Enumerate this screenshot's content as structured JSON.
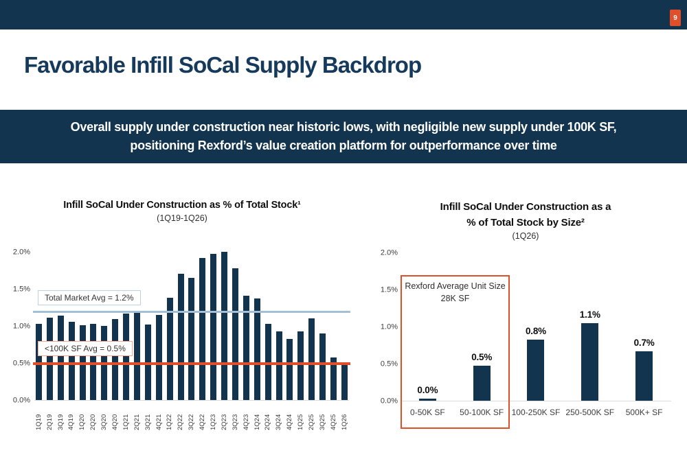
{
  "page_badge": "9",
  "title": "Favorable Infill SoCal Supply Backdrop",
  "banner": {
    "line1": "Overall supply under construction near historic lows, with negligible new supply under 100K SF,",
    "line2": "positioning Rexford’s value creation platform for outperformance over time"
  },
  "colors": {
    "navy": "#12344E",
    "orange": "#E04E2A",
    "avg_line_blue": "#A3C0D6",
    "avg_line_orange": "#E04E2A"
  },
  "chart_data": [
    {
      "type": "bar",
      "title": "Infill SoCal Under Construction as % of Total Stock¹",
      "subtitle": "(1Q19-1Q26)",
      "ylim": [
        0,
        2.0
      ],
      "yticks": [
        "0.0%",
        "0.5%",
        "1.0%",
        "1.5%",
        "2.0%"
      ],
      "grid": false,
      "categories": [
        "1Q19",
        "2Q19",
        "3Q19",
        "4Q19",
        "1Q20",
        "2Q20",
        "3Q20",
        "4Q20",
        "1Q21",
        "2Q21",
        "3Q21",
        "4Q21",
        "1Q22",
        "2Q22",
        "3Q22",
        "4Q22",
        "1Q23",
        "2Q23",
        "3Q23",
        "4Q23",
        "1Q24",
        "2Q24",
        "3Q24",
        "4Q24",
        "1Q25",
        "2Q25",
        "3Q25",
        "4Q25",
        "1Q26"
      ],
      "values": [
        1.03,
        1.11,
        1.14,
        1.06,
        1.01,
        1.03,
        1.0,
        1.09,
        1.17,
        1.18,
        1.02,
        1.15,
        1.38,
        1.7,
        1.65,
        1.92,
        1.97,
        2.0,
        1.78,
        1.41,
        1.37,
        1.03,
        0.93,
        0.82,
        0.93,
        1.1,
        0.9,
        0.57,
        0.5
      ],
      "reference_lines": [
        {
          "label": "Total Market Avg = 1.2%",
          "value": 1.2,
          "color": "#A3C0D6"
        },
        {
          "label": "<100K SF Avg = 0.5%",
          "value": 0.5,
          "color": "#E04E2A"
        }
      ]
    },
    {
      "type": "bar",
      "title": "Infill SoCal Under Construction as a % of Total Stock by Size²",
      "title_lines": [
        "Infill SoCal Under Construction as a",
        "% of Total Stock by Size²"
      ],
      "subtitle": "(1Q26)",
      "ylim": [
        0,
        2.0
      ],
      "yticks": [
        "0.0%",
        "0.5%",
        "1.0%",
        "1.5%",
        "2.0%"
      ],
      "grid": false,
      "categories": [
        "0-50K SF",
        "50-100K SF",
        "100-250K SF",
        "250-500K SF",
        "500K+ SF"
      ],
      "values": [
        0.03,
        0.47,
        0.82,
        1.05,
        0.67
      ],
      "bar_labels": [
        "0.0%",
        "0.5%",
        "0.8%",
        "1.1%",
        "0.7%"
      ],
      "annotation": {
        "line1": "Rexford Average Unit Size",
        "line2": "28K SF",
        "box_color": "#E04E2A",
        "covers": [
          "0-50K SF",
          "50-100K SF"
        ]
      }
    }
  ]
}
